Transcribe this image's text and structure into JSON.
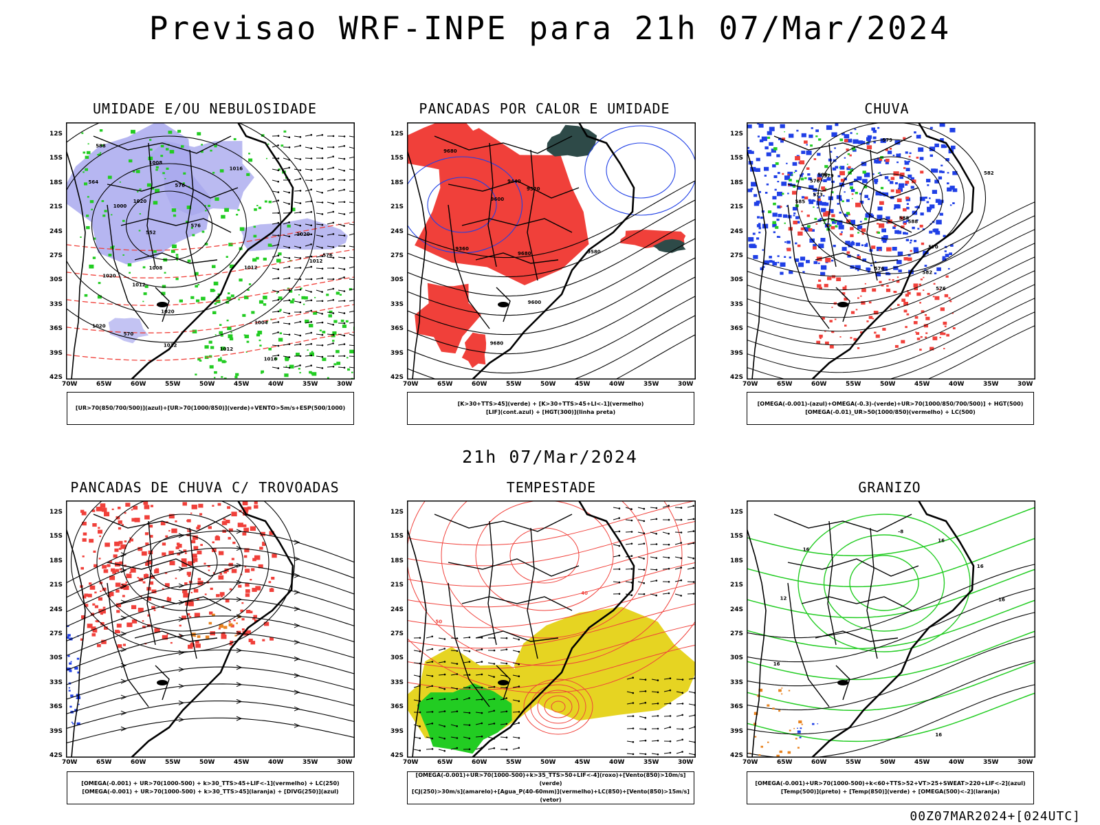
{
  "title": "Previsao WRF-INPE  para 21h 07/Mar/2024",
  "subtitle": "21h 07/Mar/2024",
  "footer": "00Z07MAR2024+[024UTC]",
  "lat_labels": [
    "12S",
    "15S",
    "18S",
    "21S",
    "24S",
    "27S",
    "30S",
    "33S",
    "36S",
    "39S",
    "42S"
  ],
  "lon_labels": [
    "70W",
    "65W",
    "60W",
    "55W",
    "50W",
    "45W",
    "40W",
    "35W",
    "30W"
  ],
  "colors": {
    "red": "#f0403a",
    "green": "#22cc22",
    "blue": "#1f3fe6",
    "lavender": "#a9a9ee",
    "yellow": "#e6d422",
    "darkteal": "#2e4a48",
    "orange": "#e8821e",
    "black": "#000000"
  },
  "panels": [
    {
      "title": "UMIDADE E/OU NEBULOSIDADE",
      "caption": [
        "[UR>70(850/700/500)](azul)+[UR>70(1000/850)](verde)+VENTO>5m/s+ESP(500/1000)"
      ],
      "contour_labels": [
        "1012",
        "1012",
        "1012",
        "1016",
        "1012",
        "1008",
        "1004",
        "1000",
        "1020",
        "1020",
        "1020",
        "1020",
        "1016",
        "1008",
        "1012",
        "1020",
        "570",
        "576",
        "564",
        "588",
        "576",
        "576",
        "552"
      ]
    },
    {
      "title": "PANCADAS POR CALOR E UMIDADE",
      "caption": [
        "[K>30+TTS>45](verde) + [K>30+TTS>45+LI<-1](vermelho)",
        "[LIF](cont.azul) + [HGT(300)](linha preta)"
      ],
      "contour_labels": [
        "9680",
        "9680",
        "9600",
        "9680",
        "9600",
        "9520",
        "9440",
        "9360",
        "9580"
      ]
    },
    {
      "title": "CHUVA",
      "caption": [
        "[OMEGA(-0.001)-(azul)+OMEGA(-0.3)-(verde)+UR>70(1000/850/700/500)] + HGT(500)",
        "[OMEGA(-0.01)_UR>50(1000/850)(vermelho) + LC(500)"
      ],
      "contour_labels": [
        "588",
        "582",
        "588",
        "585",
        "576",
        "570",
        "579",
        "576",
        "573",
        "582",
        "588",
        "579",
        "576"
      ]
    },
    {
      "title": "PANCADAS DE CHUVA C/ TROVOADAS",
      "caption": [
        "[OMEGA(-0.001) + UR>70(1000-500) + k>30_TTS>45+LIF<-1](vermelho) + LC(250)",
        "[OMEGA(-0.001) + UR>70(1000-500) + k>30_TTS>45](laranja) + [DIVG(250)](azul)"
      ],
      "contour_labels": []
    },
    {
      "title": "TEMPESTADE",
      "caption": [
        "[OMEGA(-0.001)+UR>70(1000-500)+k>35_TTS>50+LIF<-4](roxo)+[Vento(850)>10m/s](verde)",
        "[CJ(250)>30m/s](amarelo)+[Agua_P(40-60mm)](vermelho)+LC(850)+[Vento(850)>15m/s](vetor)"
      ],
      "contour_labels": [
        "50",
        "40"
      ]
    },
    {
      "title": "GRANIZO",
      "caption": [
        "[OMEGA(-0.001)+UR>70(1000-500)+k<60+TTS>52+VT>25+SWEAT>220+LIF<-2](azul)",
        "[Temp(500)](preto) + [Temp(850)](verde) + [OMEGA(500)<-2](laranja)"
      ],
      "contour_labels": [
        "16",
        "16",
        "16",
        "-8",
        "16",
        "16",
        "12",
        "16"
      ]
    }
  ]
}
